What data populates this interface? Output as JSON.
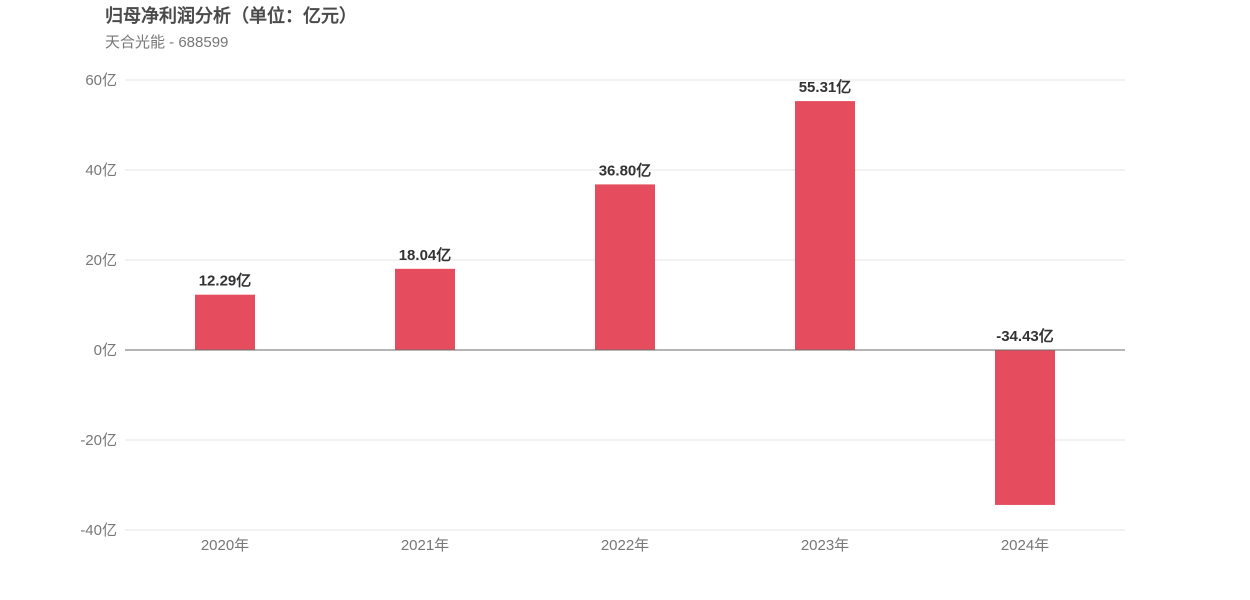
{
  "header": {
    "title": "归母净利润分析（单位：亿元）",
    "subtitle": "天合光能 - 688599"
  },
  "colors": {
    "bar": "#e54c5e"
  },
  "chart_data": {
    "type": "bar",
    "title": "归母净利润分析（单位：亿元）",
    "subtitle": "天合光能 - 688599",
    "categories": [
      "2020年",
      "2021年",
      "2022年",
      "2023年",
      "2024年"
    ],
    "values": [
      12.29,
      18.04,
      36.8,
      55.31,
      -34.43
    ],
    "data_labels": [
      "12.29亿",
      "18.04亿",
      "36.80亿",
      "55.31亿",
      "-34.43亿"
    ],
    "ylim": [
      -40,
      60
    ],
    "yticks": [
      60,
      40,
      20,
      0,
      -20,
      -40
    ],
    "ytick_labels": [
      "60亿",
      "40亿",
      "20亿",
      "0亿",
      "-20亿",
      "-40亿"
    ],
    "xlabel": "",
    "ylabel": "",
    "grid": true,
    "legend": "none"
  }
}
